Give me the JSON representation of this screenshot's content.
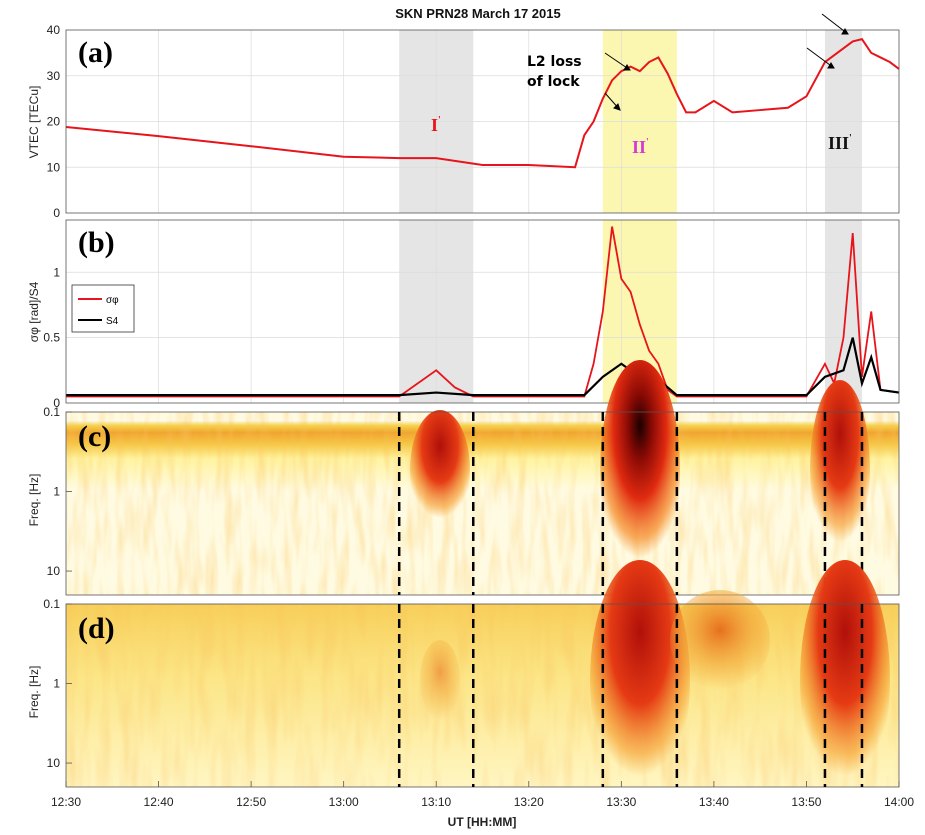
{
  "title": "SKN    PRN28    March 17 2015",
  "xlabel": "UT [HH:MM]",
  "x_ticks": [
    "12:30",
    "12:40",
    "12:50",
    "13:00",
    "13:10",
    "13:20",
    "13:30",
    "13:40",
    "13:50",
    "14:00"
  ],
  "colors": {
    "vtec": "#e8141b",
    "sigma": "#e8141b",
    "s4": "#000000",
    "gray_band": "#e5e5e5",
    "yellow_band": "#fcf7b0"
  },
  "annotations": {
    "l2_line1": "L2 loss",
    "l2_line2": "of lock",
    "region1": "I",
    "region2": "II",
    "region3": "III",
    "prime": "'"
  },
  "chart_data": [
    {
      "panel_label": "(a)",
      "type": "line",
      "ylabel": "VTEC [TECu]",
      "ylim": [
        0,
        40
      ],
      "yticks": [
        "0",
        "10",
        "20",
        "30",
        "40"
      ],
      "x_minutes_after_1230": [
        0,
        10,
        20,
        30,
        36,
        40,
        45,
        50,
        55,
        56,
        57,
        58,
        59,
        60,
        61,
        62,
        63,
        64,
        65,
        66,
        67,
        68,
        70,
        72,
        75,
        78,
        80,
        82,
        85,
        86,
        87,
        88,
        89,
        90
      ],
      "series": [
        {
          "values": [
            18.8,
            16.8,
            14.6,
            12.3,
            12,
            12,
            10.5,
            10.5,
            10,
            17,
            20,
            25,
            29,
            31,
            32,
            31,
            33,
            34,
            30.5,
            26,
            22,
            22,
            24.5,
            22,
            22.5,
            23,
            25.5,
            33,
            37.5,
            38,
            35,
            34,
            33,
            31.5
          ]
        }
      ],
      "shaded_regions": [
        {
          "start": "13:06",
          "end": "13:14",
          "color": "gray"
        },
        {
          "start": "13:28",
          "end": "13:36",
          "color": "yellow"
        },
        {
          "start": "13:52",
          "end": "13:56",
          "color": "gray"
        }
      ]
    },
    {
      "panel_label": "(b)",
      "type": "line",
      "ylabel": "σφ [rad]/S4",
      "ylim": [
        0,
        1.4
      ],
      "yticks": [
        "0",
        "0.5",
        "1"
      ],
      "legend": [
        "σφ",
        "S4"
      ],
      "legend_position": "left",
      "series": [
        {
          "name": "σφ",
          "x_minutes_after_1230": [
            0,
            36,
            38,
            40,
            42,
            44,
            56,
            57,
            58,
            59,
            60,
            61,
            62,
            63,
            64,
            65,
            66,
            67,
            80,
            82,
            83,
            84,
            85,
            86,
            87,
            88,
            90
          ],
          "values": [
            0.05,
            0.05,
            0.15,
            0.25,
            0.12,
            0.05,
            0.05,
            0.3,
            0.7,
            1.35,
            0.95,
            0.85,
            0.6,
            0.4,
            0.3,
            0.1,
            0.05,
            0.05,
            0.05,
            0.3,
            0.15,
            0.5,
            1.3,
            0.2,
            0.7,
            0.1,
            0.08
          ]
        },
        {
          "name": "S4",
          "x_minutes_after_1230": [
            0,
            36,
            40,
            44,
            56,
            58,
            60,
            62,
            64,
            66,
            67,
            80,
            82,
            84,
            85,
            86,
            87,
            88,
            90
          ],
          "values": [
            0.06,
            0.06,
            0.08,
            0.06,
            0.06,
            0.2,
            0.3,
            0.2,
            0.18,
            0.06,
            0.06,
            0.06,
            0.2,
            0.25,
            0.5,
            0.15,
            0.35,
            0.1,
            0.08
          ]
        }
      ]
    },
    {
      "panel_label": "(c)",
      "type": "heatmap",
      "ylabel": "Freq. [Hz]",
      "yscale": "log",
      "ylim": [
        0.1,
        20
      ],
      "yticks": [
        "0.1",
        "1",
        "10"
      ],
      "dashed_lines": [
        "13:06",
        "13:14",
        "13:28",
        "13:36",
        "13:52",
        "13:56"
      ]
    },
    {
      "panel_label": "(d)",
      "type": "heatmap",
      "ylabel": "Freq. [Hz]",
      "yscale": "log",
      "ylim": [
        0.1,
        20
      ],
      "yticks": [
        "0.1",
        "1",
        "10"
      ],
      "dashed_lines": [
        "13:06",
        "13:14",
        "13:28",
        "13:36",
        "13:52",
        "13:56"
      ]
    }
  ]
}
